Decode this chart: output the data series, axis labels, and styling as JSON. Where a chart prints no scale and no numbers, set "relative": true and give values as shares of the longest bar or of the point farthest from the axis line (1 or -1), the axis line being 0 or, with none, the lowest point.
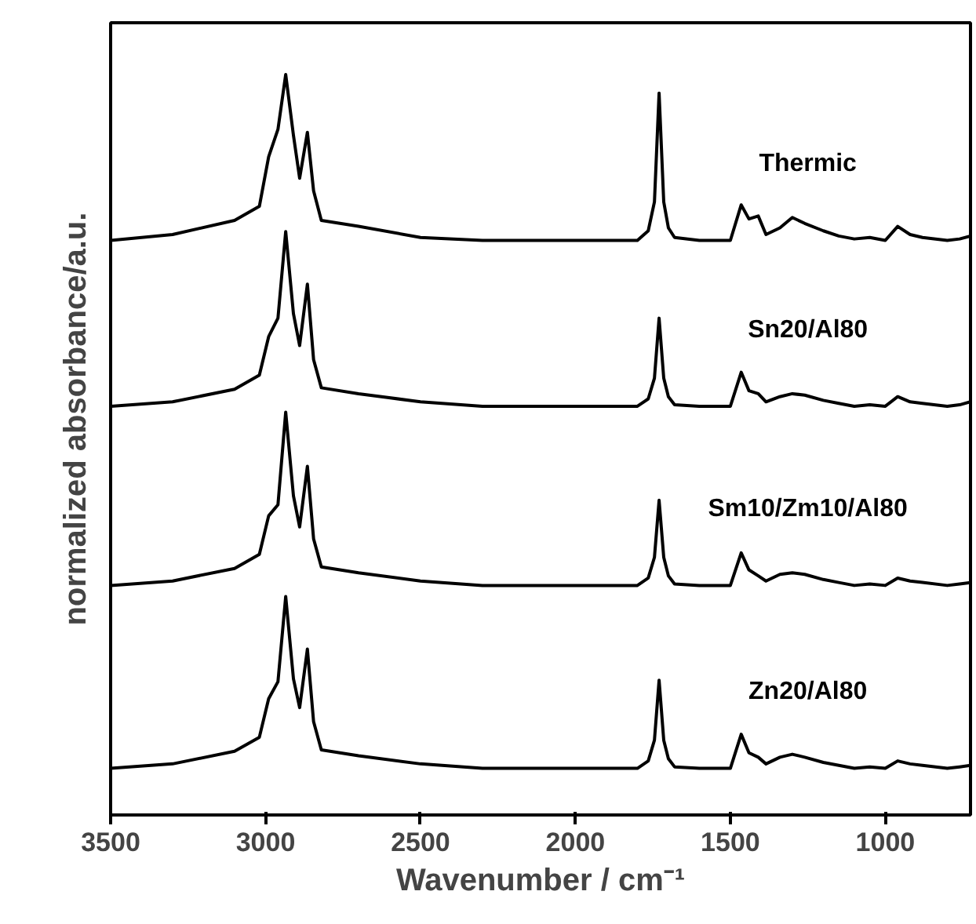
{
  "chart_data": {
    "type": "line",
    "relative": true,
    "xlabel": "Wavenumber / cm⁻¹",
    "ylabel": "normalized absorbance/a.u.",
    "xlim": [
      3500,
      725
    ],
    "xticks": [
      3500,
      3000,
      2500,
      2000,
      1500,
      1000
    ],
    "grid": false,
    "legend": false,
    "marker": "none",
    "line_style": "solid",
    "x": [
      3500,
      3300,
      3100,
      3020,
      2990,
      2960,
      2935,
      2910,
      2890,
      2865,
      2845,
      2820,
      2700,
      2500,
      2300,
      2000,
      1800,
      1765,
      1745,
      1730,
      1715,
      1700,
      1680,
      1600,
      1500,
      1465,
      1440,
      1410,
      1385,
      1340,
      1300,
      1260,
      1200,
      1150,
      1100,
      1050,
      1000,
      960,
      920,
      880,
      800,
      760,
      725
    ],
    "series": [
      {
        "name": "Thermic",
        "color": "#000000",
        "values": [
          0.776,
          0.784,
          0.803,
          0.822,
          0.889,
          0.926,
          1.0,
          0.918,
          0.86,
          0.922,
          0.843,
          0.803,
          0.795,
          0.78,
          0.776,
          0.776,
          0.776,
          0.789,
          0.828,
          0.975,
          0.828,
          0.793,
          0.78,
          0.776,
          0.776,
          0.824,
          0.805,
          0.809,
          0.784,
          0.793,
          0.807,
          0.799,
          0.789,
          0.782,
          0.778,
          0.78,
          0.776,
          0.795,
          0.784,
          0.78,
          0.776,
          0.778,
          0.782
        ]
      },
      {
        "name": "Sn20/Al80",
        "color": "#000000",
        "values": [
          0.552,
          0.558,
          0.575,
          0.594,
          0.646,
          0.671,
          0.788,
          0.677,
          0.634,
          0.717,
          0.615,
          0.577,
          0.569,
          0.558,
          0.552,
          0.552,
          0.552,
          0.562,
          0.59,
          0.671,
          0.59,
          0.565,
          0.554,
          0.552,
          0.552,
          0.598,
          0.573,
          0.569,
          0.558,
          0.565,
          0.569,
          0.567,
          0.56,
          0.556,
          0.552,
          0.554,
          0.552,
          0.565,
          0.558,
          0.556,
          0.552,
          0.554,
          0.558
        ]
      },
      {
        "name": "Sm10/Zm10/Al80",
        "color": "#000000",
        "values": [
          0.31,
          0.316,
          0.333,
          0.352,
          0.404,
          0.419,
          0.544,
          0.431,
          0.389,
          0.471,
          0.373,
          0.335,
          0.327,
          0.316,
          0.31,
          0.31,
          0.31,
          0.32,
          0.348,
          0.425,
          0.348,
          0.323,
          0.312,
          0.31,
          0.31,
          0.354,
          0.331,
          0.323,
          0.316,
          0.325,
          0.327,
          0.325,
          0.318,
          0.314,
          0.31,
          0.312,
          0.31,
          0.32,
          0.316,
          0.314,
          0.31,
          0.312,
          0.314
        ]
      },
      {
        "name": "Zn20/Al80",
        "color": "#000000",
        "values": [
          0.063,
          0.069,
          0.086,
          0.105,
          0.157,
          0.18,
          0.295,
          0.184,
          0.145,
          0.224,
          0.126,
          0.088,
          0.08,
          0.069,
          0.063,
          0.063,
          0.063,
          0.073,
          0.101,
          0.182,
          0.101,
          0.076,
          0.065,
          0.063,
          0.063,
          0.109,
          0.084,
          0.078,
          0.069,
          0.078,
          0.082,
          0.078,
          0.071,
          0.067,
          0.063,
          0.065,
          0.063,
          0.073,
          0.069,
          0.067,
          0.063,
          0.065,
          0.067
        ]
      }
    ]
  }
}
